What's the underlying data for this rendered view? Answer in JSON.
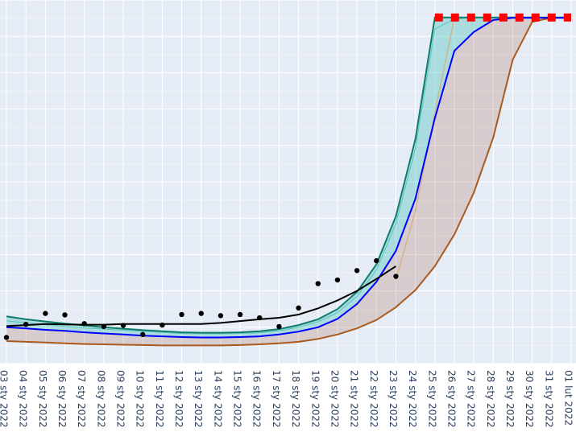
{
  "chart_data": {
    "type": "line",
    "title": "",
    "xlabel": "",
    "ylabel": "",
    "grid": true,
    "x_ticks": [
      "03 sty 2022",
      "04 sty 2022",
      "05 sty 2022",
      "06 sty 2022",
      "07 sty 2022",
      "08 sty 2022",
      "09 sty 2022",
      "10 sty 2022",
      "11 sty 2022",
      "12 sty 2022",
      "13 sty 2022",
      "14 sty 2022",
      "15 sty 2022",
      "16 sty 2022",
      "17 sty 2022",
      "18 sty 2022",
      "19 sty 2022",
      "20 sty 2022",
      "21 sty 2022",
      "22 sty 2022",
      "23 sty 2022",
      "24 sty 2022",
      "25 sty 2022",
      "26 sty 2022",
      "27 sty 2022",
      "28 sty 2022",
      "29 sty 2022",
      "30 sty 2022",
      "31 sty 2022",
      "01 lut 2022"
    ],
    "ylim": [
      0,
      1000
    ],
    "colors": {
      "plot_bg": "#e5ecf6",
      "grid": "#ffffff",
      "teal": "#0e7c6b",
      "teal_fill": "rgba(32,178,170,0.30)",
      "blue": "#0000ff",
      "brown": "#a85a1f",
      "brown_fill": "rgba(160,82,45,0.20)",
      "tan": "#d2b48c",
      "trend": "#000000",
      "points": "#000000",
      "dash": "#ff0000"
    },
    "observed": {
      "x": [
        0,
        1,
        2,
        3,
        4,
        5,
        6,
        7,
        8,
        9,
        10,
        11,
        12,
        13,
        14,
        15,
        16,
        17,
        18,
        19,
        20
      ],
      "y": [
        72,
        108,
        138,
        134,
        110,
        102,
        105,
        80,
        106,
        135,
        138,
        132,
        135,
        126,
        102,
        153,
        220,
        230,
        256,
        283,
        240
      ]
    },
    "trend": {
      "x": [
        0,
        1,
        2,
        3,
        4,
        5,
        6,
        7,
        8,
        9,
        10,
        11,
        12,
        13,
        14,
        15,
        16,
        17,
        18,
        19,
        20
      ],
      "y": [
        103,
        106,
        109,
        108,
        107,
        107,
        109,
        109,
        109,
        109,
        109,
        112,
        117,
        122,
        126,
        135,
        152,
        174,
        200,
        233,
        268
      ]
    },
    "upper_band": {
      "x": [
        0,
        1,
        2,
        3,
        4,
        5,
        6,
        7,
        8,
        9,
        10,
        11,
        12,
        13,
        14,
        15,
        16,
        17,
        18,
        19,
        20,
        21,
        22,
        23,
        24,
        25,
        26,
        27,
        28,
        29
      ],
      "y": [
        130,
        122,
        116,
        110,
        105,
        100,
        96,
        92,
        89,
        86,
        85,
        85,
        86,
        89,
        95,
        106,
        122,
        150,
        197,
        273,
        405,
        617,
        952,
        952,
        952,
        952,
        952,
        952,
        952,
        952
      ]
    },
    "teal_lower": {
      "x": [
        0,
        1,
        2,
        3,
        4,
        5,
        6,
        7,
        8,
        9,
        10,
        11,
        12,
        13,
        14,
        15,
        16,
        17,
        18,
        19,
        20,
        21,
        22,
        23,
        24,
        25,
        26,
        27,
        28,
        29
      ],
      "y": [
        118,
        112,
        107,
        102,
        98,
        95,
        92,
        89,
        86,
        83,
        82,
        82,
        83,
        85,
        90,
        100,
        115,
        140,
        185,
        258,
        385,
        592,
        920,
        948,
        952,
        952,
        952,
        952,
        952,
        952
      ]
    },
    "center": {
      "x": [
        0,
        1,
        2,
        3,
        4,
        5,
        6,
        7,
        8,
        9,
        10,
        11,
        12,
        13,
        14,
        15,
        16,
        17,
        18,
        19,
        20,
        21,
        22,
        23,
        24,
        25,
        26,
        27,
        28,
        29
      ],
      "y": [
        100,
        97,
        93,
        90,
        86,
        83,
        80,
        77,
        75,
        73,
        72,
        72,
        73,
        75,
        80,
        88,
        100,
        123,
        164,
        225,
        310,
        453,
        675,
        860,
        912,
        945,
        951,
        951,
        951,
        951
      ]
    },
    "tan_line": {
      "x": [
        20,
        21,
        22,
        23,
        24,
        25,
        26
      ],
      "y": [
        230,
        420,
        690,
        950,
        952,
        952,
        952
      ]
    },
    "lower_band": {
      "x": [
        0,
        1,
        2,
        3,
        4,
        5,
        6,
        7,
        8,
        9,
        10,
        11,
        12,
        13,
        14,
        15,
        16,
        17,
        18,
        19,
        20,
        21,
        22,
        23,
        24,
        25,
        26,
        27,
        28,
        29
      ],
      "y": [
        62,
        60,
        58,
        56,
        54,
        53,
        52,
        51,
        50,
        50,
        50,
        50,
        51,
        53,
        56,
        60,
        68,
        80,
        97,
        120,
        155,
        202,
        268,
        355,
        470,
        622,
        836,
        940,
        951,
        951
      ]
    },
    "plateau": {
      "x": [
        22,
        29
      ],
      "y": [
        952,
        952
      ]
    }
  }
}
